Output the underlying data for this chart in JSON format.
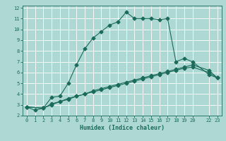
{
  "xlabel": "Humidex (Indice chaleur)",
  "ylabel": "",
  "bg_color": "#aed8d4",
  "grid_color": "#ffffff",
  "line_color": "#1a6b5a",
  "xlim": [
    -0.5,
    23.5
  ],
  "ylim": [
    2,
    12.2
  ],
  "xticks": [
    0,
    1,
    2,
    3,
    4,
    5,
    6,
    7,
    8,
    9,
    10,
    11,
    12,
    13,
    14,
    15,
    16,
    17,
    18,
    19,
    20,
    22,
    23
  ],
  "xtick_labels": [
    "0",
    "1",
    "2",
    "3",
    "4",
    "5",
    "6",
    "7",
    "8",
    "9",
    "10",
    "11",
    "12",
    "13",
    "14",
    "15",
    "16",
    "17",
    "18",
    "19",
    "20",
    "22",
    "23"
  ],
  "yticks": [
    2,
    3,
    4,
    5,
    6,
    7,
    8,
    9,
    10,
    11,
    12
  ],
  "ytick_labels": [
    "2",
    "3",
    "4",
    "5",
    "6",
    "7",
    "8",
    "9",
    "10",
    "11",
    "12"
  ],
  "line1_x": [
    0,
    1,
    2,
    3,
    4,
    5,
    6,
    7,
    8,
    9,
    10,
    11,
    12,
    13,
    14,
    15,
    16,
    17,
    18,
    19,
    20,
    22,
    23
  ],
  "line1_y": [
    2.8,
    2.5,
    2.7,
    3.7,
    3.8,
    5.0,
    6.7,
    8.2,
    9.2,
    9.8,
    10.4,
    10.7,
    11.6,
    11.0,
    11.0,
    11.0,
    10.9,
    11.0,
    7.0,
    7.3,
    7.0,
    5.8,
    5.5
  ],
  "line2_x": [
    0,
    2,
    3,
    4,
    5,
    6,
    7,
    8,
    9,
    10,
    11,
    12,
    13,
    14,
    15,
    16,
    17,
    18,
    19,
    20,
    22,
    23
  ],
  "line2_y": [
    2.8,
    2.7,
    3.0,
    3.3,
    3.5,
    3.8,
    4.0,
    4.3,
    4.5,
    4.7,
    4.9,
    5.1,
    5.3,
    5.5,
    5.7,
    5.9,
    6.1,
    6.3,
    6.5,
    6.7,
    6.2,
    5.5
  ],
  "line3_x": [
    0,
    2,
    3,
    4,
    5,
    6,
    7,
    8,
    9,
    10,
    11,
    12,
    13,
    14,
    15,
    16,
    17,
    18,
    19,
    20,
    22,
    23
  ],
  "line3_y": [
    2.8,
    2.7,
    3.1,
    3.3,
    3.6,
    3.8,
    4.0,
    4.2,
    4.4,
    4.6,
    4.8,
    5.0,
    5.2,
    5.4,
    5.6,
    5.8,
    6.0,
    6.2,
    6.4,
    6.5,
    6.0,
    5.5
  ]
}
